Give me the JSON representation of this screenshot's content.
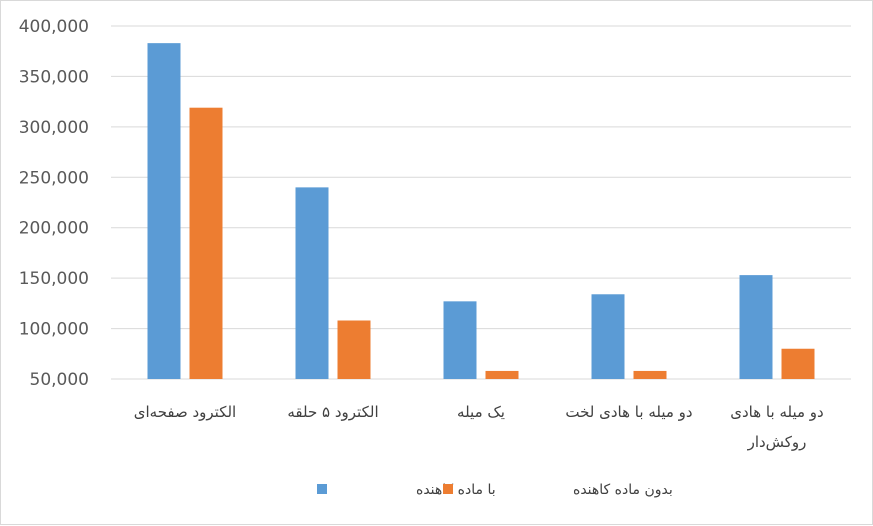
{
  "chart_data": {
    "type": "bar",
    "title": "",
    "xlabel": "",
    "ylabel": "",
    "ylim": [
      50000,
      400000
    ],
    "yticks": [
      50000,
      100000,
      150000,
      200000,
      250000,
      300000,
      350000,
      400000
    ],
    "ytick_labels": [
      "50,000",
      "100,000",
      "150,000",
      "200,000",
      "250,000",
      "300,000",
      "350,000",
      "400,000"
    ],
    "grid": true,
    "legend_position": "bottom",
    "categories": [
      [
        "الکترود صفحه‌ای"
      ],
      [
        "الکترود ۵ حلقه"
      ],
      [
        "یک میله"
      ],
      [
        "دو میله با هادی لخت"
      ],
      [
        "دو میله با هادی",
        "روکش‌دار"
      ]
    ],
    "series": [
      {
        "name": "با ماده کاهنده",
        "color": "#5B9BD5",
        "values": [
          383000,
          240000,
          127000,
          134000,
          153000
        ]
      },
      {
        "name": "بدون ماده کاهنده",
        "color": "#ED7D31",
        "values": [
          319000,
          108000,
          58000,
          58000,
          80000
        ]
      }
    ]
  }
}
